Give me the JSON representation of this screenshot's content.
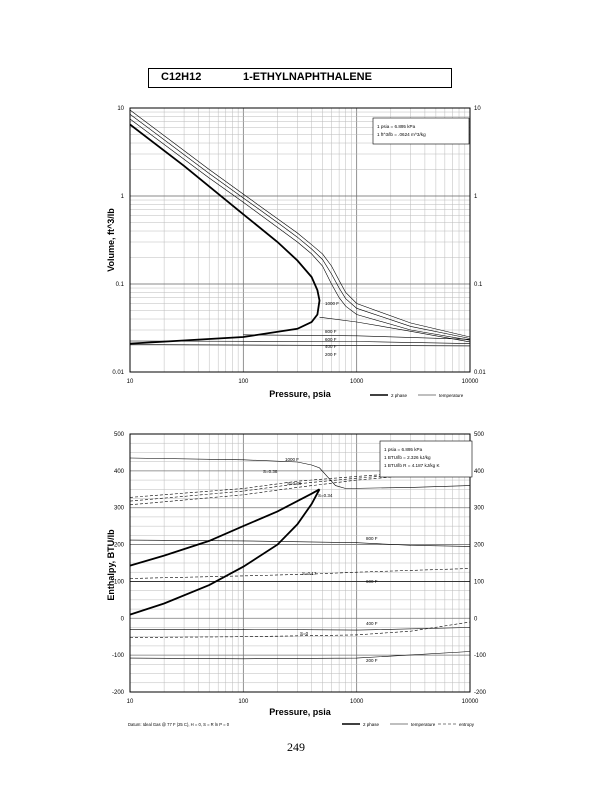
{
  "header": {
    "formula": "C12H12",
    "name": "1-ETHYLNAPHTHALENE"
  },
  "page_number": "249",
  "chart_data": [
    {
      "type": "line",
      "title": "",
      "xlabel": "Pressure,  psia",
      "ylabel": "Volume,  ft^3/lb",
      "x_scale": "log",
      "y_scale": "log",
      "xlim": [
        10,
        10000
      ],
      "ylim": [
        0.01,
        10
      ],
      "x_ticks": [
        "10",
        "100",
        "1000",
        "10000"
      ],
      "y_ticks_left": [
        "0.01",
        "0.1",
        "1",
        "10"
      ],
      "y_ticks_right": [
        "0.01",
        "0.1",
        "1",
        "10"
      ],
      "grid": true,
      "info_box": [
        "1 psia  =  6.895 kPa",
        "1 ft^3/lb  =  .0624 m^3/kg"
      ],
      "legend": [
        "2 phase",
        "temperature"
      ],
      "isotherm_labels": [
        "1000 F",
        "800 F",
        "600 F",
        "400 F",
        "200 F"
      ],
      "series": [
        {
          "name": "2 phase",
          "style": "bold",
          "points": [
            [
              10,
              6.5
            ],
            [
              30,
              2.2
            ],
            [
              100,
              0.62
            ],
            [
              200,
              0.3
            ],
            [
              300,
              0.185
            ],
            [
              400,
              0.12
            ],
            [
              450,
              0.085
            ],
            [
              470,
              0.065
            ],
            [
              450,
              0.045
            ],
            [
              400,
              0.037
            ],
            [
              300,
              0.031
            ],
            [
              100,
              0.025
            ],
            [
              10,
              0.021
            ]
          ]
        },
        {
          "name": "temperature",
          "style": "thin",
          "points": [
            [
              10,
              7.5
            ],
            [
              50,
              1.6
            ],
            [
              100,
              0.85
            ],
            [
              200,
              0.44
            ],
            [
              300,
              0.3
            ],
            [
              400,
              0.22
            ],
            [
              500,
              0.16
            ],
            [
              600,
              0.1
            ],
            [
              700,
              0.07
            ],
            [
              800,
              0.056
            ],
            [
              1000,
              0.045
            ],
            [
              3000,
              0.03
            ],
            [
              10000,
              0.023
            ]
          ]
        },
        {
          "name": "temperature",
          "style": "thin",
          "points": [
            [
              10,
              8.5
            ],
            [
              50,
              1.8
            ],
            [
              100,
              0.95
            ],
            [
              200,
              0.5
            ],
            [
              300,
              0.34
            ],
            [
              400,
              0.25
            ],
            [
              500,
              0.19
            ],
            [
              600,
              0.13
            ],
            [
              700,
              0.09
            ],
            [
              800,
              0.068
            ],
            [
              1000,
              0.053
            ],
            [
              3000,
              0.033
            ],
            [
              10000,
              0.024
            ]
          ]
        },
        {
          "name": "temperature",
          "style": "thin",
          "points": [
            [
              10,
              9.5
            ],
            [
              50,
              2.0
            ],
            [
              100,
              1.05
            ],
            [
              200,
              0.55
            ],
            [
              300,
              0.38
            ],
            [
              400,
              0.28
            ],
            [
              500,
              0.22
            ],
            [
              600,
              0.16
            ],
            [
              700,
              0.11
            ],
            [
              800,
              0.08
            ],
            [
              1000,
              0.06
            ],
            [
              3000,
              0.036
            ],
            [
              10000,
              0.025
            ]
          ]
        },
        {
          "name": "temperature",
          "style": "thin",
          "points": [
            [
              470,
              0.042
            ],
            [
              1000,
              0.037
            ],
            [
              3000,
              0.029
            ],
            [
              10000,
              0.022
            ]
          ]
        },
        {
          "name": "temperature",
          "style": "thin",
          "points": [
            [
              100,
              0.0265
            ],
            [
              1000,
              0.0258
            ],
            [
              10000,
              0.0235
            ]
          ]
        },
        {
          "name": "temperature",
          "style": "thin",
          "points": [
            [
              10,
              0.0225
            ],
            [
              1000,
              0.0222
            ],
            [
              10000,
              0.021
            ]
          ]
        },
        {
          "name": "temperature",
          "style": "thin",
          "points": [
            [
              10,
              0.0205
            ],
            [
              10000,
              0.0198
            ]
          ]
        }
      ]
    },
    {
      "type": "line",
      "title": "",
      "xlabel": "Pressure,  psia",
      "ylabel": "Enthalpy,  BTU/lb",
      "x_scale": "log",
      "y_scale": "linear",
      "xlim": [
        10,
        10000
      ],
      "ylim": [
        -200,
        500
      ],
      "x_ticks": [
        "10",
        "100",
        "1000",
        "10000"
      ],
      "y_ticks_left": [
        "-200",
        "-100",
        "0",
        "100",
        "200",
        "300",
        "400",
        "500"
      ],
      "y_ticks_right": [
        "-200",
        "-100",
        "0",
        "100",
        "200",
        "300",
        "400",
        "500"
      ],
      "grid": true,
      "info_box": [
        "1 psia  =  6.895 kPa",
        "1 BTU/lb  =  2.326 kJ/kg",
        "1 BTU/lb R  =  4.187 kJ/kg K"
      ],
      "legend": [
        "2 phase",
        "temperature",
        "entropy"
      ],
      "footnote": "Datum: Ideal Gas @ 77 F (25 C),  H = 0,  S = R ln P = 0",
      "temperature_labels": [
        "1000 F",
        "800 F",
        "600 F",
        "400 F",
        "200 F"
      ],
      "entropy_labels": [
        "S=0.38",
        "S=0.36",
        "S=0.34",
        "S=0.17",
        "S=0"
      ],
      "series": [
        {
          "name": "2 phase",
          "style": "bold",
          "points": [
            [
              10,
              143
            ],
            [
              20,
              170
            ],
            [
              50,
              210
            ],
            [
              100,
              250
            ],
            [
              200,
              290
            ],
            [
              300,
              318
            ],
            [
              400,
              338
            ],
            [
              470,
              350
            ]
          ]
        },
        {
          "name": "2 phase",
          "style": "bold",
          "points": [
            [
              10,
              10
            ],
            [
              20,
              40
            ],
            [
              50,
              90
            ],
            [
              100,
              140
            ],
            [
              200,
              200
            ],
            [
              300,
              255
            ],
            [
              400,
              310
            ],
            [
              470,
              350
            ]
          ]
        },
        {
          "name": "temperature",
          "style": "thin",
          "points": [
            [
              10,
              435
            ],
            [
              100,
              430
            ],
            [
              300,
              424
            ],
            [
              400,
              416
            ],
            [
              470,
              408
            ],
            [
              550,
              385
            ],
            [
              650,
              360
            ],
            [
              800,
              352
            ],
            [
              3000,
              355
            ],
            [
              10000,
              360
            ]
          ]
        },
        {
          "name": "temperature",
          "style": "thin",
          "points": [
            [
              10,
              212
            ],
            [
              100,
              210
            ],
            [
              1000,
              205
            ],
            [
              3000,
              198
            ],
            [
              10000,
              195
            ]
          ]
        },
        {
          "name": "temperature",
          "style": "thin",
          "points": [
            [
              10,
              100
            ],
            [
              100,
              100
            ],
            [
              1000,
              100
            ],
            [
              10000,
              100
            ]
          ]
        },
        {
          "name": "temperature",
          "style": "thin",
          "points": [
            [
              10,
              -30
            ],
            [
              100,
              -30
            ],
            [
              1000,
              -32
            ],
            [
              10000,
              -25
            ]
          ]
        },
        {
          "name": "temperature",
          "style": "thin",
          "points": [
            [
              10,
              -108
            ],
            [
              100,
              -110
            ],
            [
              1000,
              -108
            ],
            [
              10000,
              -90
            ]
          ]
        },
        {
          "name": "entropy",
          "style": "dashed",
          "points": [
            [
              10,
              308
            ],
            [
              100,
              335
            ],
            [
              300,
              355
            ],
            [
              1000,
              375
            ],
            [
              3000,
              388
            ],
            [
              10000,
              400
            ]
          ]
        },
        {
          "name": "entropy",
          "style": "dashed",
          "points": [
            [
              10,
              318
            ],
            [
              100,
              345
            ],
            [
              300,
              365
            ],
            [
              1000,
              380
            ],
            [
              3000,
              392
            ],
            [
              10000,
              402
            ]
          ]
        },
        {
          "name": "entropy",
          "style": "dashed",
          "points": [
            [
              10,
              328
            ],
            [
              100,
              352
            ],
            [
              300,
              372
            ],
            [
              1000,
              385
            ],
            [
              3000,
              395
            ],
            [
              10000,
              405
            ]
          ]
        },
        {
          "name": "entropy",
          "style": "dashed",
          "points": [
            [
              10,
              108
            ],
            [
              100,
              115
            ],
            [
              400,
              120
            ],
            [
              1000,
              125
            ],
            [
              3000,
              130
            ],
            [
              10000,
              135
            ]
          ]
        },
        {
          "name": "entropy",
          "style": "dashed",
          "points": [
            [
              10,
              -52
            ],
            [
              100,
              -50
            ],
            [
              1000,
              -45
            ],
            [
              3000,
              -35
            ],
            [
              10000,
              -10
            ]
          ]
        }
      ]
    }
  ]
}
